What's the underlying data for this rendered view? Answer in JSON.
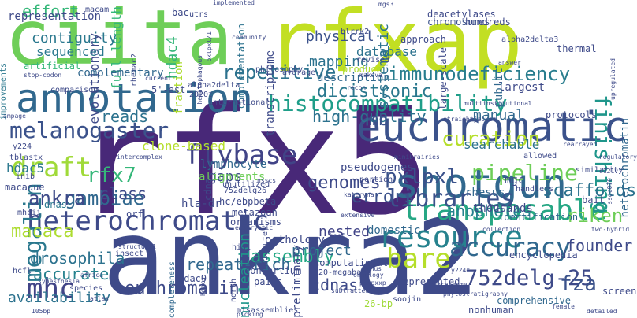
{
  "words": [
    {
      "text": "rfx5",
      "color": "#482878"
    },
    {
      "text": "ankra2",
      "color": "#3e4a89"
    },
    {
      "text": "rfxap",
      "color": "#c2df23"
    },
    {
      "text": "ciita",
      "color": "#6ece58"
    },
    {
      "text": "annotation",
      "color": "#31688e"
    },
    {
      "text": "euchromatic",
      "color": "#3b528b"
    },
    {
      "text": "shotgun",
      "color": "#31688e"
    },
    {
      "text": "histocompatibility",
      "color": "#1f9e89"
    },
    {
      "text": "resource",
      "color": "#26828e"
    },
    {
      "text": "heterochromatic",
      "color": "#3e4a89"
    },
    {
      "text": "transposable",
      "color": "#26a784"
    },
    {
      "text": "accuracy",
      "color": "#31688e"
    },
    {
      "text": "bare",
      "color": "#b5de2b"
    },
    {
      "text": "752delg-25",
      "color": "#3e4a89"
    },
    {
      "text": "flybase",
      "color": "#414487"
    },
    {
      "text": "melanogaster",
      "color": "#3b528b"
    },
    {
      "text": "draft",
      "color": "#a0da39"
    },
    {
      "text": "immunodeficiency",
      "color": "#287d8e"
    },
    {
      "text": "repetitive",
      "color": "#2c728e"
    },
    {
      "text": "finishing",
      "color": "#1f968b"
    },
    {
      "text": "pipeline",
      "color": "#6ece58"
    },
    {
      "text": "libraries",
      "color": "#3b528b"
    },
    {
      "text": "curation",
      "color": "#b5de2b"
    },
    {
      "text": "mhc",
      "color": "#414487"
    },
    {
      "text": "fza",
      "color": "#3b528b"
    },
    {
      "text": "megalin",
      "color": "#2a788e"
    },
    {
      "text": "pxlpxl",
      "color": "#3b528b"
    },
    {
      "text": "rfx7",
      "color": "#35b779"
    },
    {
      "text": "macaca",
      "color": "#addc30"
    },
    {
      "text": "gambiae",
      "color": "#31688e"
    },
    {
      "text": "ankra",
      "color": "#3e4a89"
    },
    {
      "text": "riken",
      "color": "#6ece58"
    },
    {
      "text": "scaffolds",
      "color": "#2c728e"
    },
    {
      "text": "genomes",
      "color": "#3e4a89"
    },
    {
      "text": "assembly",
      "color": "#22a884"
    },
    {
      "text": "errors",
      "color": "#3b528b"
    },
    {
      "text": "dicistronic",
      "color": "#2a788e"
    },
    {
      "text": "high-quality",
      "color": "#2c728e"
    },
    {
      "text": "euchromatin",
      "color": "#3e4a89"
    },
    {
      "text": "repeat-rich",
      "color": "#31688e"
    },
    {
      "text": "cdnas",
      "color": "#3e4a89"
    },
    {
      "text": "anopheles",
      "color": "#26828e"
    },
    {
      "text": "drosophila",
      "color": "#2c728e"
    },
    {
      "text": "accurate",
      "color": "#26828e"
    },
    {
      "text": "availability",
      "color": "#2c728e"
    },
    {
      "text": "nucleation",
      "color": "#1f968b"
    },
    {
      "text": "founder",
      "color": "#3e4a89"
    },
    {
      "text": "mapping",
      "color": "#2c728e"
    },
    {
      "text": "manual",
      "color": "#31688e"
    },
    {
      "text": "mb",
      "color": "#3b528b"
    },
    {
      "text": "reads",
      "color": "#2c728e"
    },
    {
      "text": "gaps",
      "color": "#3e4a89"
    },
    {
      "text": "class",
      "color": "#3e4a89"
    },
    {
      "text": "nested",
      "color": "#414487"
    },
    {
      "text": "project",
      "color": "#31688e"
    },
    {
      "text": "full-length",
      "color": "#35b779"
    },
    {
      "text": "hdac4",
      "color": "#35b779"
    },
    {
      "text": "effort",
      "color": "#35b779"
    },
    {
      "text": "contiguity",
      "color": "#2a788e"
    },
    {
      "text": "evolutionary",
      "color": "#3e4a89"
    },
    {
      "text": "complementary",
      "color": "#31688e"
    },
    {
      "text": "sequenced",
      "color": "#2a788e"
    },
    {
      "text": "physical",
      "color": "#3b528b"
    },
    {
      "text": "database",
      "color": "#2c728e"
    },
    {
      "text": "systematic",
      "color": "#2c728e"
    },
    {
      "text": "heterochromatin",
      "color": "#31688e"
    },
    {
      "text": "searchable",
      "color": "#2c728e"
    },
    {
      "text": "pseudogenes",
      "color": "#3e4a89"
    },
    {
      "text": "hdac5",
      "color": "#2a788e"
    },
    {
      "text": "clone-based",
      "color": "#b5de2b"
    },
    {
      "text": "lymphocyte",
      "color": "#31688e"
    },
    {
      "text": "alignments",
      "color": "#6ece58"
    },
    {
      "text": "representation",
      "color": "#3e4a89"
    },
    {
      "text": "description",
      "color": "#31688e"
    },
    {
      "text": "largest",
      "color": "#3e4a89"
    },
    {
      "text": "domestic",
      "color": "#31688e"
    },
    {
      "text": "hla-dr",
      "color": "#3e4a89"
    },
    {
      "text": "orthology",
      "color": "#3e4a89"
    },
    {
      "text": "consortium",
      "color": "#3e4a89"
    },
    {
      "text": "preliminary",
      "color": "#3e4a89"
    },
    {
      "text": "hdac9",
      "color": "#3e4a89"
    },
    {
      "text": "thousands",
      "color": "#3e4a89"
    },
    {
      "text": "mgc",
      "color": "#3e4a89"
    },
    {
      "text": "rhesus",
      "color": "#31688e"
    },
    {
      "text": "fraction",
      "color": "#addc30"
    },
    {
      "text": "complementation",
      "color": "#2c728e"
    },
    {
      "text": "transcriptome",
      "color": "#3e4a89"
    },
    {
      "text": "public",
      "color": "#31688e"
    },
    {
      "text": "chromosomes",
      "color": "#3b528b"
    },
    {
      "text": "hundreds",
      "color": "#3e4a89"
    },
    {
      "text": "approach",
      "color": "#3e4a89"
    },
    {
      "text": "deacetylases",
      "color": "#3e4a89"
    },
    {
      "text": "thermal",
      "color": "#3e4a89"
    },
    {
      "text": "produce",
      "color": "#addc30"
    },
    {
      "text": "large-scale",
      "color": "#3e4a89"
    },
    {
      "text": "protocols",
      "color": "#3e4a89"
    },
    {
      "text": "hcfl",
      "color": "#3e4a89"
    },
    {
      "text": "macaque",
      "color": "#3e4a89"
    },
    {
      "text": "metazoan",
      "color": "#3e4a89"
    },
    {
      "text": "organisms",
      "color": "#3e4a89"
    },
    {
      "text": "hc/ebpbeta",
      "color": "#3e4a89"
    },
    {
      "text": "dnas",
      "color": "#2a788e"
    },
    {
      "text": "orf",
      "color": "#3e4a89"
    },
    {
      "text": "bait",
      "color": "#3e4a89"
    },
    {
      "text": "identification",
      "color": "#31688e"
    },
    {
      "text": "computational",
      "color": "#3e4a89"
    },
    {
      "text": "120-megabase",
      "color": "#3e4a89"
    },
    {
      "text": "represented",
      "color": "#3e4a89"
    },
    {
      "text": "encyclopedia",
      "color": "#3e4a89"
    },
    {
      "text": "comprehensive",
      "color": "#31688e"
    },
    {
      "text": "screen",
      "color": "#3e4a89"
    },
    {
      "text": "nonhuman",
      "color": "#3e4a89"
    },
    {
      "text": "26-bp",
      "color": "#a0da39"
    },
    {
      "text": "soojin",
      "color": "#3e4a89"
    },
    {
      "text": "insect",
      "color": "#3e4a89"
    },
    {
      "text": "species",
      "color": "#3e4a89"
    },
    {
      "text": "completeness",
      "color": "#31688e"
    },
    {
      "text": "institute",
      "color": "#3e4a89"
    },
    {
      "text": "misassemblies",
      "color": "#3e4a89"
    },
    {
      "text": "unutilized",
      "color": "#3e4a89"
    },
    {
      "text": "comparison",
      "color": "#3e4a89"
    },
    {
      "text": "5'-est",
      "color": "#3e4a89"
    },
    {
      "text": "philosophy",
      "color": "#3e4a89"
    },
    {
      "text": "international",
      "color": "#3e4a89"
    },
    {
      "text": "artificial",
      "color": "#35b779"
    },
    {
      "text": "improvements",
      "color": "#2a788e"
    },
    {
      "text": "rhemac2",
      "color": "#3e4a89"
    },
    {
      "text": "macam",
      "color": "#3e4a89"
    },
    {
      "text": "bac",
      "color": "#3e4a89"
    },
    {
      "text": "utrs",
      "color": "#3e4a89"
    },
    {
      "text": "implemented",
      "color": "#3e4a89"
    },
    {
      "text": "mgs3",
      "color": "#3e4a89"
    },
    {
      "text": "hlrrk2",
      "color": "#3e4a89"
    },
    {
      "text": "makova",
      "color": "#3e4a89"
    },
    {
      "text": "revised",
      "color": "#3e4a89"
    },
    {
      "text": "alpha2delta3",
      "color": "#3e4a89"
    },
    {
      "text": "alpha2delta",
      "color": "#3e4a89"
    },
    {
      "text": "recon",
      "color": "#3e4a89"
    },
    {
      "text": "average",
      "color": "#3e4a89"
    },
    {
      "text": "pxlpxl/1",
      "color": "#3e4a89"
    },
    {
      "text": "community",
      "color": "#3e4a89"
    },
    {
      "text": "current",
      "color": "#3e4a89"
    },
    {
      "text": "752delg26",
      "color": "#3e4a89"
    },
    {
      "text": "cdna",
      "color": "#3e4a89"
    },
    {
      "text": "his1",
      "color": "#3e4a89"
    },
    {
      "text": "nsscs",
      "color": "#3e4a89"
    },
    {
      "text": "portion",
      "color": "#3e4a89"
    },
    {
      "text": "kateryna",
      "color": "#3e4a89"
    },
    {
      "text": "extensive",
      "color": "#3e4a89"
    },
    {
      "text": "hacf",
      "color": "#3e4a89"
    },
    {
      "text": "north",
      "color": "#3e4a89"
    },
    {
      "text": "pairs",
      "color": "#3e4a89"
    },
    {
      "text": "africa",
      "color": "#3e4a89"
    },
    {
      "text": "atlas",
      "color": "#3e4a89"
    },
    {
      "text": "synesthesia",
      "color": "#3e4a89"
    },
    {
      "text": "structural",
      "color": "#3e4a89"
    },
    {
      "text": "eukaryotic",
      "color": "#3e4a89"
    },
    {
      "text": "picking",
      "color": "#3e4a89"
    },
    {
      "text": "hdacs",
      "color": "#3e4a89"
    },
    {
      "text": "subtracted",
      "color": "#3e4a89"
    },
    {
      "text": "pxxpxxp",
      "color": "#3e4a89"
    },
    {
      "text": "genus",
      "color": "#3e4a89"
    },
    {
      "text": "ontology",
      "color": "#3e4a89"
    },
    {
      "text": "y224f",
      "color": "#3e4a89"
    },
    {
      "text": "handlers",
      "color": "#3e4a89"
    },
    {
      "text": "allowed",
      "color": "#3e4a89"
    },
    {
      "text": "rearrayed",
      "color": "#3e4a89"
    },
    {
      "text": "two-hybrid",
      "color": "#3e4a89"
    },
    {
      "text": "proteome",
      "color": "#3e4a89"
    },
    {
      "text": "phylostratigraphy",
      "color": "#3e4a89"
    },
    {
      "text": "multiinstitutional",
      "color": "#3e4a89"
    },
    {
      "text": "straightjacket",
      "color": "#3e4a89"
    },
    {
      "text": "minibrairies",
      "color": "#3e4a89"
    },
    {
      "text": "detailed",
      "color": "#3e4a89"
    },
    {
      "text": "similarity",
      "color": "#3e4a89"
    },
    {
      "text": "collection",
      "color": "#3e4a89"
    },
    {
      "text": "inib",
      "color": "#3e4a89"
    },
    {
      "text": "y224",
      "color": "#3e4a89"
    },
    {
      "text": "stop-codon",
      "color": "#3e4a89"
    },
    {
      "text": "mhcii",
      "color": "#3e4a89"
    },
    {
      "text": "intercomplex",
      "color": "#3e4a89"
    },
    {
      "text": "tblastx",
      "color": "#3e4a89"
    },
    {
      "text": "2020t",
      "color": "#3e4a89"
    },
    {
      "text": "105bp",
      "color": "#3e4a89"
    },
    {
      "text": "hematophagous",
      "color": "#3e4a89"
    },
    {
      "text": "answer",
      "color": "#3e4a89"
    },
    {
      "text": "ampage",
      "color": "#3e4a89"
    },
    {
      "text": "d121v",
      "color": "#3e4a89"
    },
    {
      "text": "ssdc070",
      "color": "#3e4a89"
    },
    {
      "text": "upregulated",
      "color": "#3e4a89"
    },
    {
      "text": "female",
      "color": "#3e4a89"
    },
    {
      "text": "regulatory",
      "color": "#3e4a89"
    }
  ]
}
